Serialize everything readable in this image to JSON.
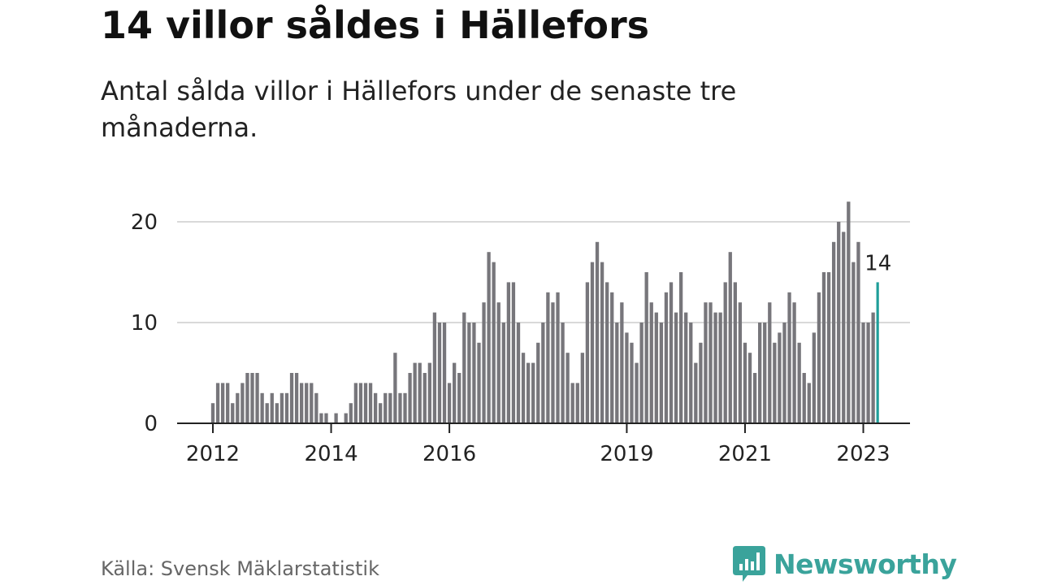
{
  "title": "14 villor såldes i Hällefors",
  "subtitle": "Antal sålda villor i Hällefors under de senaste tre månaderna.",
  "source": "Källa: Svensk Mäklarstatistik",
  "brand": {
    "name": "Newsworthy",
    "icon": "newsworthy-logo-icon",
    "color": "#3aa39b"
  },
  "colors": {
    "bar": "#77767b",
    "highlight": "#1f9e99",
    "grid": "#d9d9d9",
    "axis": "#222222"
  },
  "chart_data": {
    "type": "bar",
    "title": "14 villor såldes i Hällefors",
    "xlabel": "",
    "ylabel": "",
    "ylim": [
      0,
      22
    ],
    "yticks": [
      0,
      10,
      20
    ],
    "grid": true,
    "x_start": "2012-01",
    "x_end": "2023-04",
    "xticks": [
      {
        "label": "2012",
        "at": "2012-01"
      },
      {
        "label": "2014",
        "at": "2014-01"
      },
      {
        "label": "2016",
        "at": "2016-01"
      },
      {
        "label": "2019",
        "at": "2019-01"
      },
      {
        "label": "2021",
        "at": "2021-01"
      },
      {
        "label": "2023",
        "at": "2023-01"
      }
    ],
    "values": [
      2,
      4,
      4,
      4,
      2,
      3,
      4,
      5,
      5,
      5,
      3,
      2,
      3,
      2,
      3,
      3,
      5,
      5,
      4,
      4,
      4,
      3,
      1,
      1,
      0,
      1,
      0,
      1,
      2,
      4,
      4,
      4,
      4,
      3,
      2,
      3,
      3,
      7,
      3,
      3,
      5,
      6,
      6,
      5,
      6,
      11,
      10,
      10,
      4,
      6,
      5,
      11,
      10,
      10,
      8,
      12,
      17,
      16,
      12,
      10,
      14,
      14,
      10,
      7,
      6,
      6,
      8,
      10,
      13,
      12,
      13,
      10,
      7,
      4,
      4,
      7,
      14,
      16,
      18,
      16,
      14,
      13,
      10,
      12,
      9,
      8,
      6,
      10,
      15,
      12,
      11,
      10,
      13,
      14,
      11,
      15,
      11,
      10,
      6,
      8,
      12,
      12,
      11,
      11,
      14,
      17,
      14,
      12,
      8,
      7,
      5,
      10,
      10,
      12,
      8,
      9,
      10,
      13,
      12,
      8,
      5,
      4,
      9,
      13,
      15,
      15,
      18,
      20,
      19,
      22,
      16,
      18,
      10,
      10,
      11,
      14
    ],
    "highlight": {
      "index": 135,
      "value": 14,
      "label": "14"
    }
  }
}
